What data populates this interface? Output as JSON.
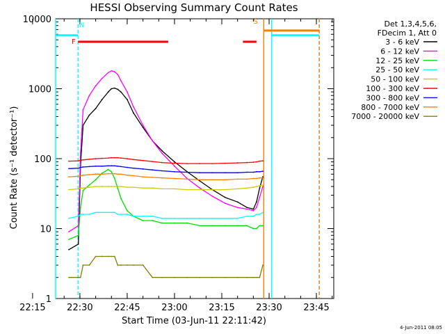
{
  "chart_data": {
    "type": "line",
    "title": "HESSI Observing Summary Count Rates",
    "xlabel": "Start Time (03-Jun-11 22:11:42)",
    "ylabel": "Count Rate (s⁻¹ detector⁻¹)",
    "footer_date": "4-Jun-2011 08:05",
    "y_scale": "log",
    "ylim": [
      1,
      10000
    ],
    "xlim_minutes": [
      22.3,
      110.5
    ],
    "x_ticks": [
      {
        "label": "22:15",
        "minutes": 15
      },
      {
        "label": "22:30",
        "minutes": 30
      },
      {
        "label": "22:45",
        "minutes": 45
      },
      {
        "label": "23:00",
        "minutes": 60
      },
      {
        "label": "23:15",
        "minutes": 75
      },
      {
        "label": "23:30",
        "minutes": 90
      },
      {
        "label": "23:45",
        "minutes": 105
      }
    ],
    "y_ticks": [
      {
        "label": "1",
        "value": 1
      },
      {
        "label": "10",
        "value": 10
      },
      {
        "label": "100",
        "value": 100
      },
      {
        "label": "1000",
        "value": 1000
      },
      {
        "label": "10000",
        "value": 10000
      }
    ],
    "legend_header": [
      "Det 1,3,4,5,6,",
      "FDecim 1, Att 0"
    ],
    "legend_placement": "right",
    "grid": false,
    "series": [
      {
        "name": "3 - 6 keV",
        "color": "#000000",
        "x": [
          26.5,
          29.5,
          30.2,
          31,
          33,
          35,
          37,
          39,
          40,
          41,
          42,
          43,
          45,
          47,
          50,
          53,
          56,
          60,
          64,
          68,
          72,
          76,
          80,
          83,
          85,
          86,
          87,
          88
        ],
        "y": [
          5,
          6,
          80,
          300,
          420,
          520,
          700,
          900,
          1000,
          1020,
          980,
          900,
          700,
          450,
          280,
          180,
          130,
          90,
          65,
          48,
          36,
          28,
          24,
          20,
          19,
          24,
          38,
          55
        ]
      },
      {
        "name": "6 - 12 keV",
        "color": "#ff00ff",
        "x": [
          26.5,
          29.5,
          30.2,
          31,
          33,
          35,
          37,
          39,
          40,
          41,
          42,
          43,
          45,
          47,
          50,
          53,
          56,
          60,
          64,
          68,
          72,
          76,
          80,
          83,
          85,
          86,
          87,
          88
        ],
        "y": [
          9,
          11,
          120,
          500,
          800,
          1100,
          1400,
          1700,
          1800,
          1750,
          1600,
          1300,
          900,
          550,
          300,
          180,
          120,
          78,
          52,
          38,
          29,
          23,
          20,
          19,
          18,
          20,
          28,
          40
        ]
      },
      {
        "name": "12 - 25 keV",
        "color": "#00dd00",
        "x": [
          26.5,
          29.5,
          30.2,
          31,
          33,
          35,
          37,
          39,
          40,
          41,
          42,
          43,
          45,
          47,
          50,
          53,
          56,
          60,
          64,
          68,
          72,
          76,
          80,
          83,
          85,
          86,
          87,
          88
        ],
        "y": [
          7,
          8,
          20,
          35,
          42,
          50,
          62,
          70,
          65,
          52,
          38,
          27,
          18,
          15,
          13,
          13,
          12,
          12,
          12,
          11,
          11,
          11,
          11,
          11,
          10,
          10,
          11,
          11
        ]
      },
      {
        "name": "25 - 50 keV",
        "color": "#00ffff",
        "x": [
          26.5,
          29.5,
          30.2,
          31,
          33,
          35,
          37,
          39,
          40,
          41,
          42,
          43,
          45,
          47,
          50,
          53,
          56,
          60,
          64,
          68,
          72,
          76,
          80,
          83,
          85,
          86,
          87,
          88
        ],
        "y": [
          14,
          15,
          16,
          16,
          16,
          17,
          17,
          17,
          17,
          17,
          16,
          16,
          16,
          15,
          15,
          15,
          14,
          14,
          14,
          14,
          14,
          14,
          14,
          15,
          15,
          16,
          16,
          17
        ]
      },
      {
        "name": "50 - 100 keV",
        "color": "#cccc00",
        "x": [
          26.5,
          29.5,
          30.2,
          31,
          33,
          35,
          37,
          39,
          40,
          41,
          42,
          43,
          45,
          47,
          50,
          53,
          56,
          60,
          64,
          68,
          72,
          76,
          80,
          83,
          85,
          86,
          87,
          88
        ],
        "y": [
          36,
          37,
          38,
          38,
          39,
          40,
          40,
          40,
          40,
          40,
          40,
          40,
          39,
          39,
          38,
          38,
          37,
          37,
          36,
          36,
          36,
          36,
          37,
          38,
          39,
          40,
          41,
          42
        ]
      },
      {
        "name": "100 - 300 keV",
        "color": "#ff0000",
        "x": [
          26.5,
          29.5,
          30.2,
          31,
          33,
          35,
          37,
          39,
          40,
          41,
          42,
          43,
          45,
          47,
          50,
          53,
          56,
          60,
          64,
          68,
          72,
          76,
          80,
          83,
          85,
          86,
          87,
          88
        ],
        "y": [
          92,
          93,
          95,
          96,
          98,
          100,
          101,
          102,
          103,
          103,
          103,
          102,
          100,
          97,
          94,
          91,
          88,
          86,
          85,
          85,
          85,
          86,
          87,
          88,
          89,
          90,
          92,
          93
        ]
      },
      {
        "name": "300 - 800 keV",
        "color": "#0000ff",
        "x": [
          26.5,
          29.5,
          30.2,
          31,
          33,
          35,
          37,
          39,
          40,
          41,
          42,
          43,
          45,
          47,
          50,
          53,
          56,
          60,
          64,
          68,
          72,
          76,
          80,
          83,
          85,
          86,
          87,
          88
        ],
        "y": [
          72,
          73,
          75,
          76,
          77,
          78,
          78,
          79,
          79,
          79,
          78,
          77,
          75,
          73,
          71,
          69,
          67,
          65,
          64,
          63,
          63,
          63,
          63,
          64,
          64,
          65,
          65,
          66
        ]
      },
      {
        "name": "800 - 7000 keV",
        "color": "#ff8000",
        "x": [
          26.5,
          29.5,
          30.2,
          31,
          33,
          35,
          37,
          39,
          40,
          41,
          42,
          43,
          45,
          47,
          50,
          53,
          56,
          60,
          64,
          68,
          72,
          76,
          80,
          83,
          85,
          86,
          87,
          88
        ],
        "y": [
          55,
          56,
          57,
          58,
          59,
          60,
          60,
          61,
          61,
          61,
          60,
          60,
          58,
          57,
          55,
          54,
          53,
          52,
          51,
          50,
          50,
          50,
          51,
          51,
          52,
          52,
          53,
          53
        ]
      },
      {
        "name": "7000 - 20000 keV",
        "color": "#808000",
        "x": [
          26.5,
          29.5,
          30.2,
          31,
          33,
          35,
          37,
          39,
          40,
          41,
          42,
          43,
          45,
          47,
          50,
          53,
          56,
          60,
          64,
          68,
          72,
          76,
          80,
          83,
          85,
          86,
          87,
          88
        ],
        "y": [
          2,
          2,
          2,
          3,
          3,
          4,
          4,
          4,
          4,
          4,
          3,
          3,
          3,
          3,
          3,
          2,
          2,
          2,
          2,
          2,
          2,
          2,
          2,
          2,
          2,
          2,
          2,
          3
        ]
      }
    ],
    "flag_labels": [
      {
        "text": "N",
        "color": "#00ffff"
      },
      {
        "text": "F",
        "color": "#ff0000"
      },
      {
        "text": "S",
        "color": "#ff8000"
      }
    ],
    "flag_bars": [
      {
        "color": "#00ffff",
        "x_minutes": [
          22.3,
          29.4
        ],
        "y_value": 5800
      },
      {
        "color": "#00ffff",
        "x_minutes": [
          90.8,
          105.9
        ],
        "y_value": 5800
      },
      {
        "color": "#ff0000",
        "x_minutes": [
          29.4,
          58
        ],
        "y_value": 4700
      },
      {
        "color": "#ff0000",
        "x_minutes": [
          81.7,
          86
        ],
        "y_value": 4700
      },
      {
        "color": "#ff8000",
        "x_minutes": [
          88.3,
          105.9
        ],
        "y_value": 6800
      }
    ],
    "vertical_markers": [
      {
        "color": "#00ffff",
        "style": "solid",
        "x_minutes": 22.3
      },
      {
        "color": "#00ffff",
        "style": "dashed",
        "x_minutes": 29.4
      },
      {
        "color": "#00ffff",
        "style": "solid",
        "x_minutes": 90.8
      },
      {
        "color": "#00ffff",
        "style": "dashed",
        "x_minutes": 105.9
      },
      {
        "color": "#ff8000",
        "style": "solid",
        "x_minutes": 88.3
      },
      {
        "color": "#ff8000",
        "style": "dashed",
        "x_minutes": 105.9
      }
    ]
  }
}
